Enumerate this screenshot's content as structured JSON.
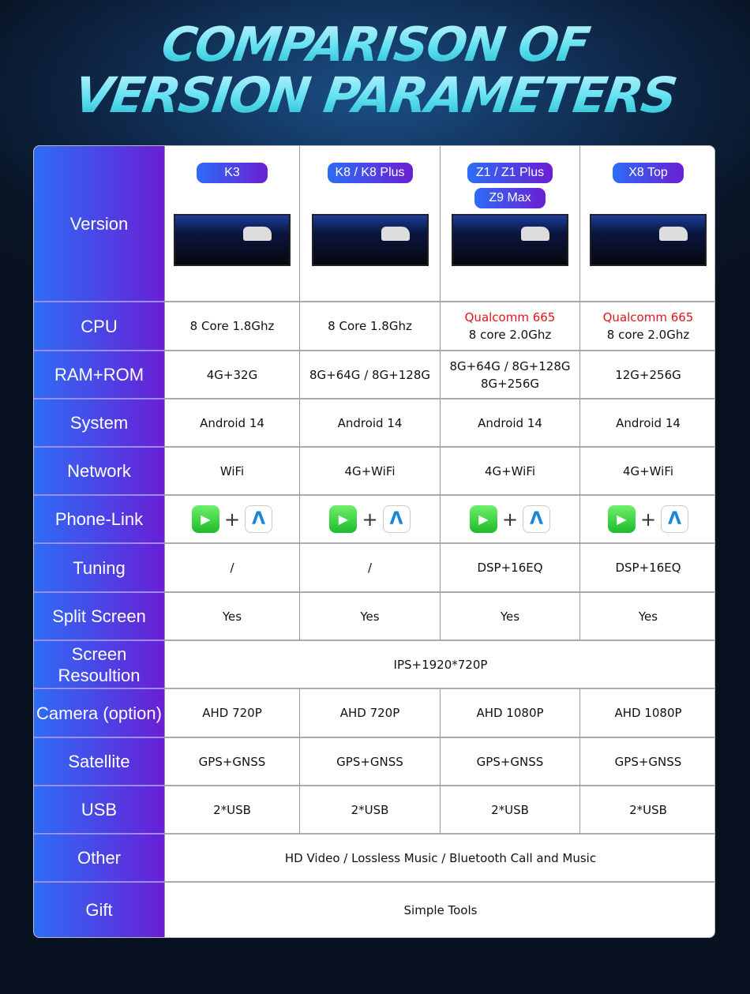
{
  "title": {
    "line1": "COMPARISON OF",
    "line2": "VERSION PARAMETERS"
  },
  "versions": [
    [
      "K3"
    ],
    [
      "K8 / K8 Plus"
    ],
    [
      "Z1 / Z1 Plus",
      "Z9 Max"
    ],
    [
      "X8 Top"
    ]
  ],
  "version_label": "Version",
  "rows": [
    {
      "label": "CPU",
      "cells": [
        [
          "8 Core 1.8Ghz"
        ],
        [
          "8 Core 1.8Ghz"
        ],
        [
          "Qualcomm 665",
          "8 core 2.0Ghz"
        ],
        [
          "Qualcomm 665",
          "8 core 2.0Ghz"
        ]
      ]
    },
    {
      "label": "RAM+ROM",
      "cells": [
        [
          "4G+32G"
        ],
        [
          "8G+64G / 8G+128G"
        ],
        [
          "8G+64G / 8G+128G",
          "8G+256G"
        ],
        [
          "12G+256G"
        ]
      ]
    },
    {
      "label": "System",
      "cells": [
        [
          "Android 14"
        ],
        [
          "Android 14"
        ],
        [
          "Android 14"
        ],
        [
          "Android 14"
        ]
      ]
    },
    {
      "label": "Network",
      "cells": [
        [
          "WiFi"
        ],
        [
          "4G+WiFi"
        ],
        [
          "4G+WiFi"
        ],
        [
          "4G+WiFi"
        ]
      ]
    },
    {
      "label": "Phone-Link",
      "icons": true,
      "cells": [
        [
          "carplay-icon",
          "android-auto-icon"
        ],
        [
          "carplay-icon",
          "android-auto-icon"
        ],
        [
          "carplay-icon",
          "android-auto-icon"
        ],
        [
          "carplay-icon",
          "android-auto-icon"
        ]
      ],
      "plus": "+"
    },
    {
      "label": "Tuning",
      "cells": [
        [
          "/"
        ],
        [
          "/"
        ],
        [
          "DSP+16EQ"
        ],
        [
          "DSP+16EQ"
        ]
      ]
    },
    {
      "label": "Split Screen",
      "cells": [
        [
          "Yes"
        ],
        [
          "Yes"
        ],
        [
          "Yes"
        ],
        [
          "Yes"
        ]
      ]
    },
    {
      "label": "Screen Resoultion",
      "span": "IPS+1920*720P"
    },
    {
      "label": "Camera (option)",
      "cells": [
        [
          "AHD 720P"
        ],
        [
          "AHD 720P"
        ],
        [
          "AHD 1080P"
        ],
        [
          "AHD 1080P"
        ]
      ]
    },
    {
      "label": "Satellite",
      "cells": [
        [
          "GPS+GNSS"
        ],
        [
          "GPS+GNSS"
        ],
        [
          "GPS+GNSS"
        ],
        [
          "GPS+GNSS"
        ]
      ]
    },
    {
      "label": "USB",
      "cells": [
        [
          "2*USB"
        ],
        [
          "2*USB"
        ],
        [
          "2*USB"
        ],
        [
          "2*USB"
        ]
      ]
    },
    {
      "label": "Other",
      "span": "HD Video / Lossless Music / Bluetooth Call and Music"
    },
    {
      "label": "Gift",
      "span": "Simple Tools"
    }
  ],
  "colors": {
    "highlight": "#e0151b",
    "accent_start": "#2f6cf5",
    "accent_end": "#6a1fd4",
    "title": "#5fe0f0"
  }
}
